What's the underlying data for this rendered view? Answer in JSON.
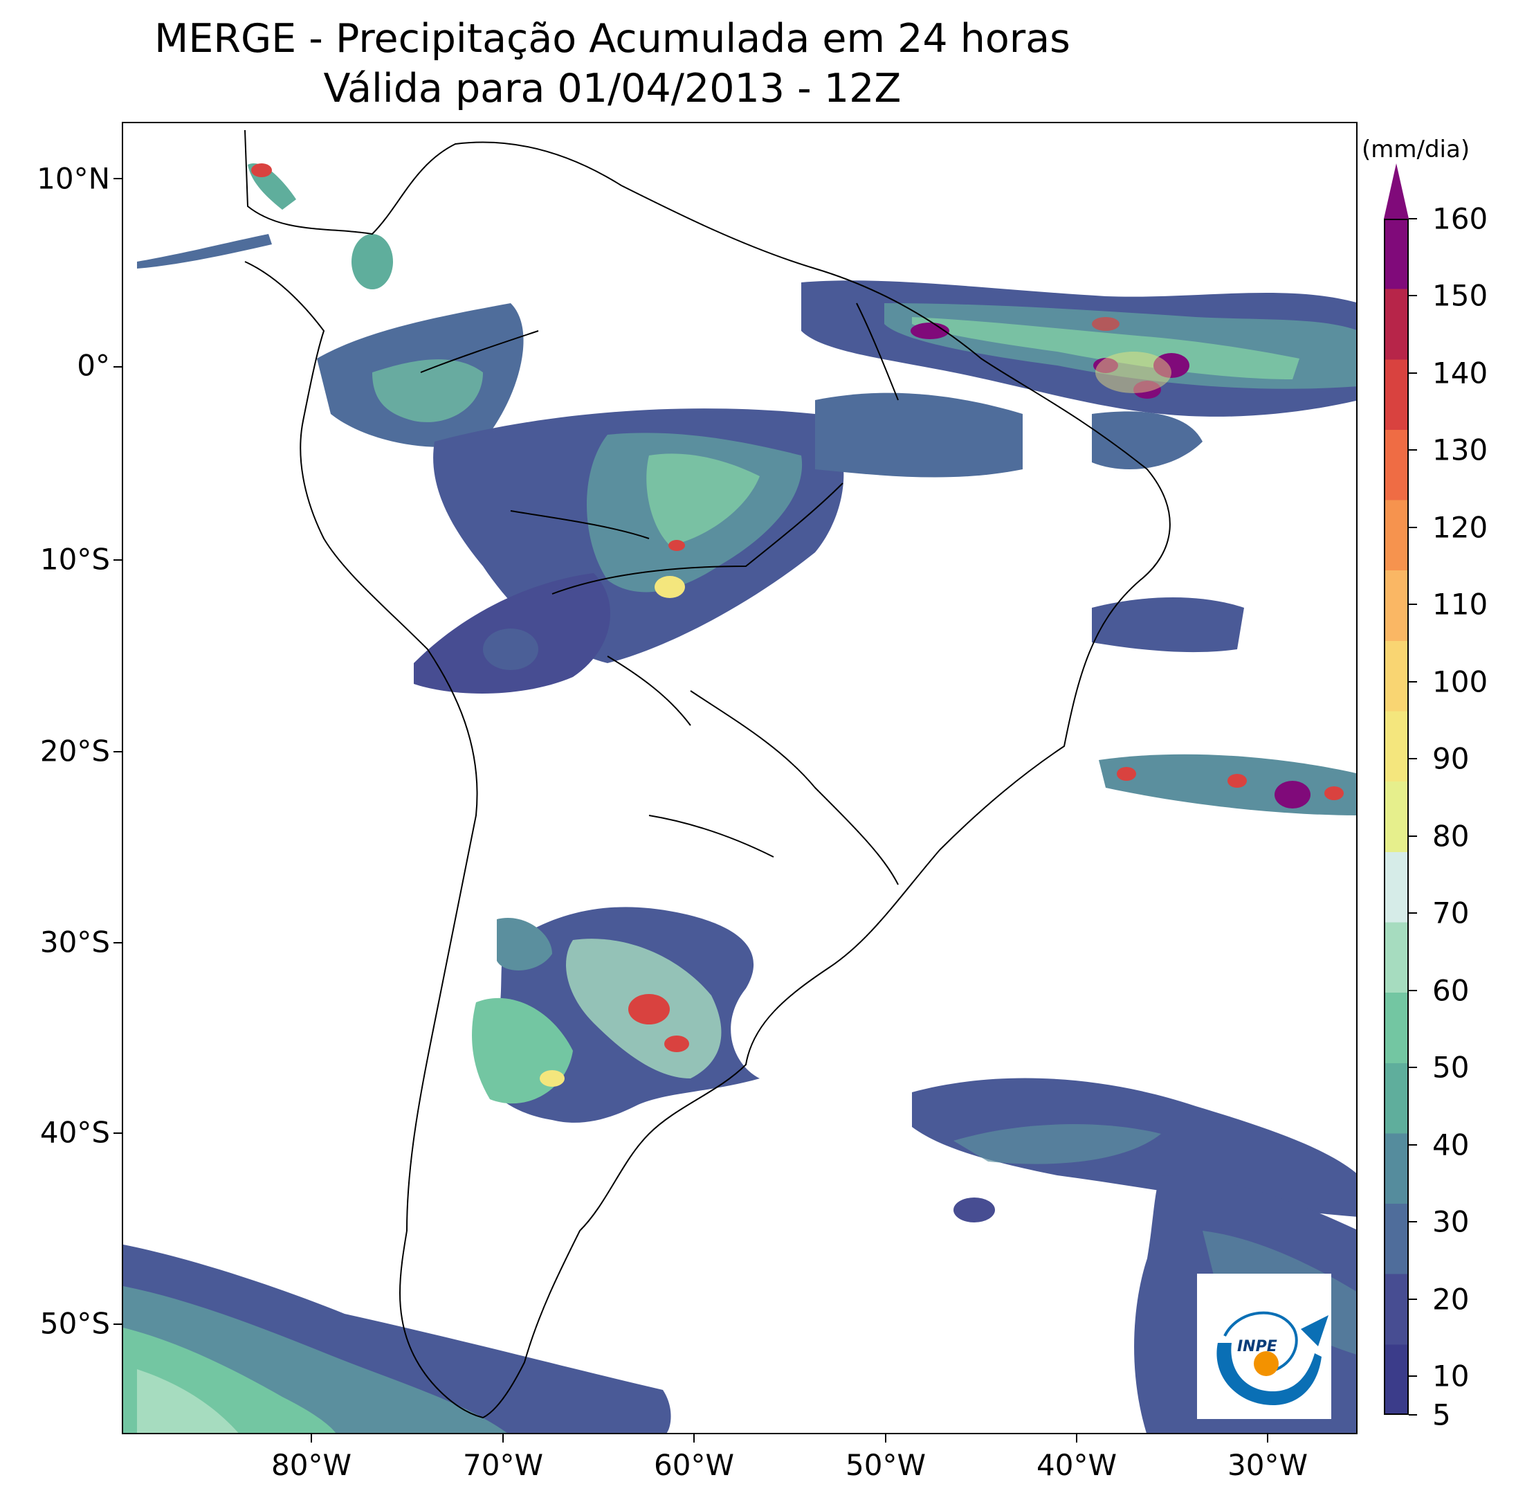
{
  "title": {
    "line1": "MERGE - Precipitação Acumulada em 24 horas",
    "line2": "Válida para 01/04/2013 - 12Z"
  },
  "axes": {
    "lat_labels": [
      "10°N",
      "0°",
      "10°S",
      "20°S",
      "30°S",
      "40°S",
      "50°S"
    ],
    "lon_labels": [
      "80°W",
      "70°W",
      "60°W",
      "50°W",
      "40°W",
      "30°W"
    ]
  },
  "colorbar": {
    "unit_label": "(mm/dia)",
    "tick_labels": [
      "5",
      "10",
      "20",
      "30",
      "40",
      "50",
      "60",
      "70",
      "80",
      "90",
      "100",
      "110",
      "120",
      "130",
      "140",
      "150",
      "160"
    ],
    "extend": "max",
    "colors": [
      "#3b3c8a",
      "#474d92",
      "#4f6d9b",
      "#558c9d",
      "#5fae9c",
      "#73c6a2",
      "#a6dcbf",
      "#d6ece8",
      "#e6ef8c",
      "#f4e67d",
      "#f9d572",
      "#fab764",
      "#f6934e",
      "#ef6c44",
      "#d9423f",
      "#b72549",
      "#800a7a"
    ]
  },
  "logo": {
    "text": "INPE"
  }
}
